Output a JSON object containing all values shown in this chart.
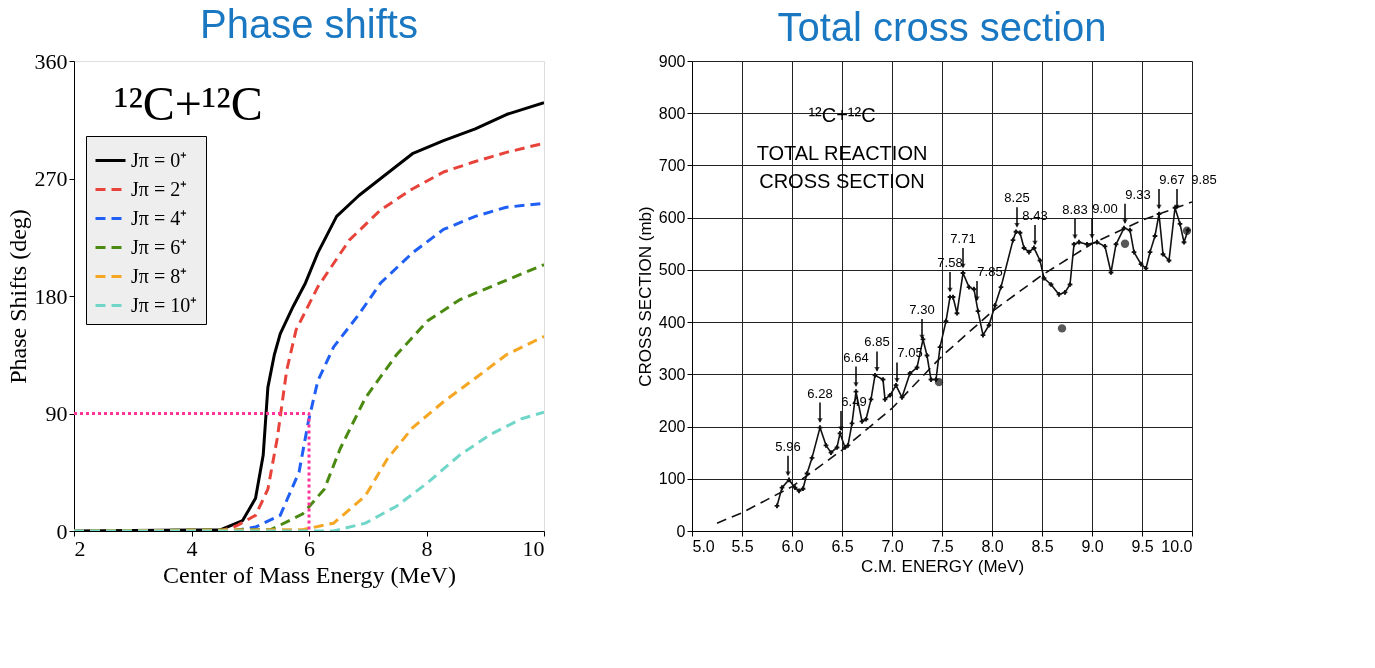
{
  "chart_data": [
    {
      "type": "line",
      "title": "Phase shifts",
      "xlabel": "Center of Mass Energy (MeV)",
      "ylabel": "Phase Shifts (deg)",
      "xlim": [
        2,
        10
      ],
      "xticks": [
        2,
        4,
        6,
        8,
        10
      ],
      "ylim": [
        0,
        360
      ],
      "yticks": [
        0,
        90,
        180,
        270,
        360
      ],
      "grid": false,
      "legend": "top left",
      "annotations": [
        "¹²C+¹²C"
      ],
      "series": [
        {
          "name": "Jπ = 0⁺",
          "color": "#000000",
          "line_style": "solid",
          "x": [
            2,
            4.5,
            4.87,
            5.09,
            5.22,
            5.3,
            5.41,
            5.51,
            5.73,
            5.94,
            6.15,
            6.47,
            6.85,
            7.22,
            7.76,
            8.29,
            8.83,
            9.36,
            10
          ],
          "values": [
            0,
            1,
            8,
            25,
            58,
            110,
            135,
            151,
            172,
            190,
            213,
            241,
            257,
            270,
            289,
            299,
            308,
            319,
            328
          ]
        },
        {
          "name": "Jπ = 2⁺",
          "color": "#e8433a",
          "line_style": "dashed",
          "x": [
            2,
            4.5,
            4.77,
            5.09,
            5.3,
            5.46,
            5.62,
            5.78,
            6.15,
            6.69,
            7.22,
            7.76,
            8.29,
            8.83,
            9.36,
            10
          ],
          "values": [
            0,
            0,
            4,
            12,
            32,
            71,
            123,
            154,
            187,
            223,
            246,
            262,
            275,
            283,
            290,
            297
          ]
        },
        {
          "name": "Jπ = 4⁺",
          "color": "#1f5ff5",
          "line_style": "dashed",
          "x": [
            2,
            4.7,
            5.09,
            5.51,
            5.83,
            5.99,
            6.15,
            6.42,
            6.85,
            7.22,
            7.76,
            8.29,
            8.83,
            9.36,
            10
          ],
          "values": [
            0,
            0,
            3,
            12,
            45,
            84,
            115,
            141,
            166,
            190,
            213,
            231,
            241,
            248,
            251
          ]
        },
        {
          "name": "Jπ = 6⁺",
          "color": "#4a8a10",
          "line_style": "dashed",
          "x": [
            2,
            5.35,
            5.89,
            6.26,
            6.53,
            6.96,
            7.49,
            8.02,
            8.56,
            9.09,
            9.62,
            10
          ],
          "values": [
            0,
            1,
            13,
            32,
            63,
            102,
            135,
            161,
            177,
            187,
            197,
            204
          ]
        },
        {
          "name": "Jπ = 8⁺",
          "color": "#f5a623",
          "line_style": "dashed",
          "x": [
            2,
            5.89,
            6.42,
            6.96,
            7.33,
            7.76,
            8.29,
            8.83,
            9.36,
            10
          ],
          "values": [
            0,
            1,
            6,
            27,
            55,
            79,
            99,
            117,
            135,
            149
          ]
        },
        {
          "name": "Jπ = 10⁺",
          "color": "#6fd6c8",
          "line_style": "dashed",
          "x": [
            2,
            6.42,
            6.96,
            7.49,
            8.02,
            8.56,
            9.09,
            9.62,
            10
          ],
          "values": [
            0,
            0,
            6,
            19,
            37,
            58,
            74,
            86,
            91
          ]
        },
        {
          "color": "#ff3399",
          "line_style": "dotted",
          "x": [
            2,
            6,
            6
          ],
          "values": [
            90,
            90,
            0
          ]
        }
      ]
    },
    {
      "type": "line",
      "title": "Total cross section",
      "xlabel": "C.M. ENERGY (MeV)",
      "ylabel": "CROSS SECTION (mb)",
      "xlim": [
        5,
        10
      ],
      "xticks": [
        {
          "value": 5,
          "label": "5.0"
        },
        5.5,
        {
          "value": 6,
          "label": "6.0"
        },
        6.5,
        {
          "value": 7,
          "label": "7.0"
        },
        7.5,
        {
          "value": 8,
          "label": "8.0"
        },
        8.5,
        {
          "value": 9,
          "label": "9.0"
        },
        9.5,
        {
          "value": 10,
          "label": "10.0"
        }
      ],
      "ylim": [
        0,
        900
      ],
      "yticks": [
        0,
        100,
        200,
        300,
        400,
        500,
        600,
        700,
        800,
        900
      ],
      "grid": true,
      "annotations": [
        "¹²C+¹²C",
        "TOTAL REACTION",
        "CROSS SECTION",
        {
          "text": "5.96",
          "x": 5.96,
          "y": 96
        },
        {
          "text": "6.28",
          "x": 6.28,
          "y": 198
        },
        {
          "text": "6.49",
          "x": 6.49,
          "y": 182
        },
        {
          "text": "6.64",
          "x": 6.64,
          "y": 267
        },
        {
          "text": "6.85",
          "x": 6.85,
          "y": 296
        },
        {
          "text": "7.05",
          "x": 7.05,
          "y": 275
        },
        {
          "text": "7.30",
          "x": 7.3,
          "y": 358
        },
        {
          "text": "7.58",
          "x": 7.58,
          "y": 448
        },
        {
          "text": "7.71",
          "x": 7.71,
          "y": 494
        },
        {
          "text": "7.85",
          "x": 7.85,
          "y": 431
        },
        {
          "text": "8.25",
          "x": 8.25,
          "y": 572
        },
        {
          "text": "8.43",
          "x": 8.43,
          "y": 538
        },
        {
          "text": "8.83",
          "x": 8.83,
          "y": 550
        },
        {
          "text": "9.00",
          "x": 9.0,
          "y": 551
        },
        {
          "text": "9.33",
          "x": 9.33,
          "y": 579
        },
        {
          "text": "9.67",
          "x": 9.67,
          "y": 607
        },
        {
          "text": "9.85",
          "x": 9.85,
          "y": 607
        }
      ],
      "series": [
        {
          "type": "line",
          "color": "#111111",
          "line_style": "solid",
          "marker": "cross",
          "x": [
            5.85,
            5.9,
            5.97,
            6.03,
            6.07,
            6.11,
            6.15,
            6.2,
            6.28,
            6.34,
            6.39,
            6.45,
            6.48,
            6.53,
            6.56,
            6.6,
            6.64,
            6.7,
            6.74,
            6.79,
            6.83,
            6.91,
            6.93,
            6.98,
            7.04,
            7.1,
            7.18,
            7.25,
            7.31,
            7.35,
            7.39,
            7.44,
            7.48,
            7.54,
            7.58,
            7.61,
            7.65,
            7.71,
            7.77,
            7.82,
            7.86,
            7.91,
            7.97,
            8.03,
            8.09,
            8.21,
            8.24,
            8.28,
            8.32,
            8.37,
            8.42,
            8.48,
            8.52,
            8.59,
            8.67,
            8.73,
            8.78,
            8.82,
            8.87,
            8.95,
            9.05,
            9.13,
            9.19,
            9.24,
            9.32,
            9.38,
            9.42,
            9.49,
            9.54,
            9.58,
            9.63,
            9.67,
            9.71,
            9.77,
            9.83,
            9.88,
            9.92,
            9.96
          ],
          "values": [
            48,
            83,
            98,
            83,
            77,
            81,
            110,
            140,
            198,
            164,
            150,
            160,
            187,
            160,
            164,
            206,
            267,
            210,
            214,
            252,
            298,
            290,
            252,
            260,
            279,
            256,
            302,
            313,
            367,
            336,
            290,
            290,
            352,
            402,
            448,
            448,
            417,
            494,
            467,
            463,
            421,
            375,
            394,
            432,
            467,
            557,
            573,
            571,
            542,
            534,
            542,
            518,
            484,
            472,
            453,
            457,
            472,
            549,
            553,
            549,
            553,
            545,
            495,
            549,
            580,
            576,
            534,
            511,
            503,
            534,
            565,
            607,
            530,
            518,
            619,
            588,
            553,
            576
          ]
        },
        {
          "type": "line",
          "color": "#111111",
          "line_style": "dashed",
          "x": [
            5.25,
            5.5,
            6.0,
            6.5,
            7.0,
            7.5,
            8.0,
            8.5,
            9.0,
            9.5,
            10.0
          ],
          "values": [
            15,
            35,
            85,
            155,
            235,
            335,
            420,
            490,
            550,
            595,
            630
          ]
        },
        {
          "type": "scatter",
          "color": "#111111",
          "marker": "circle",
          "x": [
            7.47,
            8.7,
            9.33,
            9.95
          ],
          "values": [
            285,
            388,
            550,
            575
          ]
        }
      ]
    }
  ]
}
